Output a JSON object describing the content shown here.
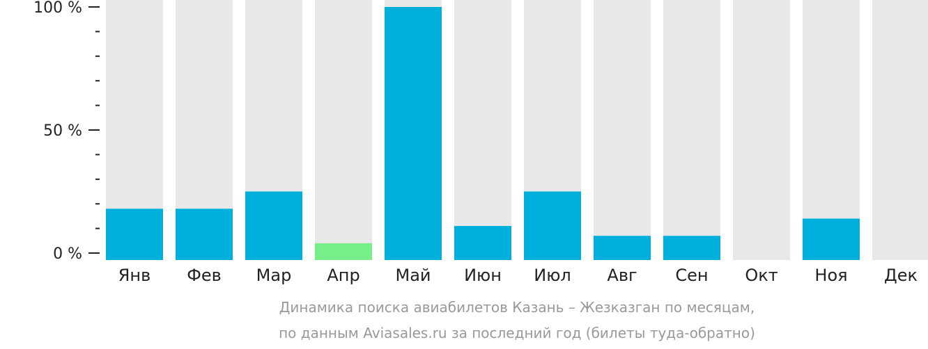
{
  "chart_data": {
    "type": "bar",
    "categories": [
      "Янв",
      "Фев",
      "Мар",
      "Апр",
      "Май",
      "Июн",
      "Июл",
      "Авг",
      "Сен",
      "Окт",
      "Ноя",
      "Дек"
    ],
    "values": [
      18,
      18,
      25,
      4,
      100,
      11,
      25,
      7,
      7,
      0,
      14,
      0
    ],
    "ylim": [
      0,
      100
    ],
    "yticks": [
      {
        "value": 0,
        "label": "0 %"
      },
      {
        "value": 50,
        "label": "50 %"
      },
      {
        "value": 100,
        "label": "100 %"
      }
    ],
    "minor_ticks": [
      10,
      20,
      30,
      40,
      60,
      70,
      80,
      90
    ],
    "highlight_index": 3,
    "colors": {
      "bar": "#00b0dc",
      "highlight": "#77ee88",
      "background_bar": "#e8e8e8",
      "axis": "#222222",
      "caption": "#999999"
    }
  },
  "caption": {
    "line1": "Динамика поиска авиабилетов Казань – Жезказган по месяцам,",
    "line2": "по данным Aviasales.ru за последний год (билеты туда-обратно)"
  }
}
